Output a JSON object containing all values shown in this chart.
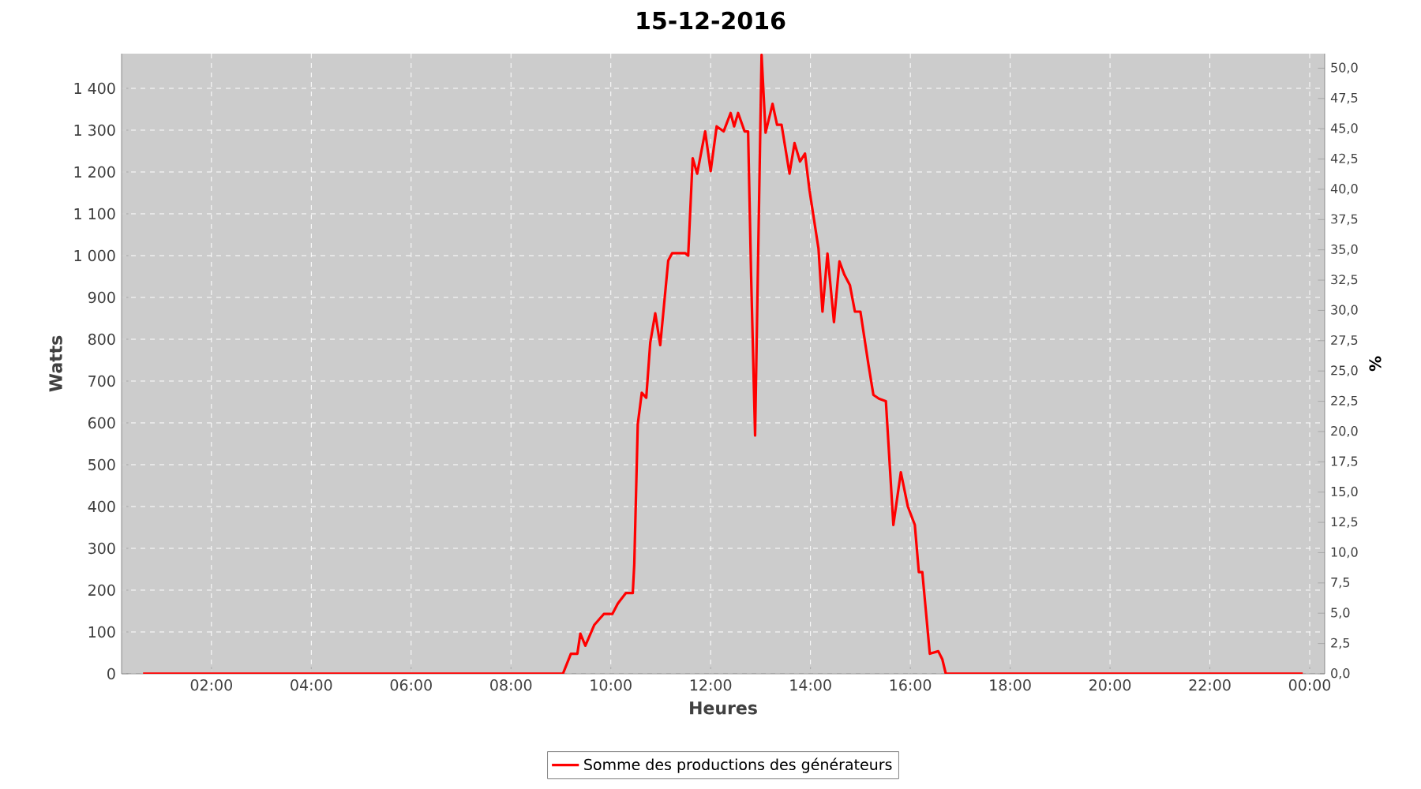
{
  "chart_data": {
    "type": "line",
    "title": "15-12-2016",
    "xlabel": "Heures",
    "ylabel": "Watts",
    "y2label": "%",
    "xlim": [
      0.2,
      24.3
    ],
    "ylim": [
      0,
      1483
    ],
    "y2lim": [
      0,
      51.2
    ],
    "xticks": [
      {
        "value": 2,
        "label": "02:00"
      },
      {
        "value": 4,
        "label": "04:00"
      },
      {
        "value": 6,
        "label": "06:00"
      },
      {
        "value": 8,
        "label": "08:00"
      },
      {
        "value": 10,
        "label": "10:00"
      },
      {
        "value": 12,
        "label": "12:00"
      },
      {
        "value": 14,
        "label": "14:00"
      },
      {
        "value": 16,
        "label": "16:00"
      },
      {
        "value": 18,
        "label": "18:00"
      },
      {
        "value": 20,
        "label": "20:00"
      },
      {
        "value": 22,
        "label": "22:00"
      },
      {
        "value": 24,
        "label": "00:00"
      }
    ],
    "yticks": [
      0,
      100,
      200,
      300,
      400,
      500,
      600,
      700,
      800,
      900,
      {
        "value": 1000,
        "label": "1 000"
      },
      {
        "value": 1100,
        "label": "1 100"
      },
      {
        "value": 1200,
        "label": "1 200"
      },
      {
        "value": 1300,
        "label": "1 300"
      },
      {
        "value": 1400,
        "label": "1 400"
      }
    ],
    "y2ticks": [
      {
        "value": 0,
        "label": "0,0"
      },
      {
        "value": 2.5,
        "label": "2,5"
      },
      {
        "value": 5,
        "label": "5,0"
      },
      {
        "value": 7.5,
        "label": "7,5"
      },
      {
        "value": 10,
        "label": "10,0"
      },
      {
        "value": 12.5,
        "label": "12,5"
      },
      {
        "value": 15,
        "label": "15,0"
      },
      {
        "value": 17.5,
        "label": "17,5"
      },
      {
        "value": 20,
        "label": "20,0"
      },
      {
        "value": 22.5,
        "label": "22,5"
      },
      {
        "value": 25,
        "label": "25,0"
      },
      {
        "value": 27.5,
        "label": "27,5"
      },
      {
        "value": 30,
        "label": "30,0"
      },
      {
        "value": 32.5,
        "label": "32,5"
      },
      {
        "value": 35,
        "label": "35,0"
      },
      {
        "value": 37.5,
        "label": "37,5"
      },
      {
        "value": 40,
        "label": "40,0"
      },
      {
        "value": 42.5,
        "label": "42,5"
      },
      {
        "value": 45,
        "label": "45,0"
      },
      {
        "value": 47.5,
        "label": "47,5"
      },
      {
        "value": 50,
        "label": "50,0"
      }
    ],
    "grid": true,
    "legend": "bottom",
    "line_style": "solid",
    "series": [
      {
        "name": "Somme des productions des  générateurs",
        "color": "#ff0000",
        "x": [
          0.63,
          9.04,
          9.2,
          9.33,
          9.39,
          9.49,
          9.67,
          9.86,
          10.03,
          10.14,
          10.3,
          10.44,
          10.47,
          10.54,
          10.62,
          10.71,
          10.79,
          10.89,
          10.99,
          11.15,
          11.23,
          11.49,
          11.55,
          11.64,
          11.73,
          11.89,
          12.0,
          12.12,
          12.26,
          12.4,
          12.47,
          12.55,
          12.68,
          12.75,
          12.81,
          12.89,
          13.02,
          13.1,
          13.24,
          13.33,
          13.42,
          13.58,
          13.68,
          13.79,
          13.89,
          13.98,
          14.16,
          14.24,
          14.34,
          14.47,
          14.58,
          14.68,
          14.79,
          14.89,
          15.0,
          15.16,
          15.26,
          15.37,
          15.51,
          15.66,
          15.81,
          15.95,
          16.09,
          16.17,
          16.24,
          16.39,
          16.56,
          16.64,
          16.71,
          23.86
        ],
        "values": [
          0,
          0,
          48,
          48,
          96,
          67,
          117,
          143,
          143,
          168,
          193,
          193,
          262,
          597,
          672,
          660,
          792,
          862,
          786,
          988,
          1006,
          1006,
          1000,
          1233,
          1196,
          1297,
          1202,
          1309,
          1297,
          1341,
          1309,
          1341,
          1297,
          1297,
          954,
          570,
          1480,
          1294,
          1363,
          1313,
          1313,
          1196,
          1269,
          1225,
          1244,
          1156,
          1017,
          866,
          1005,
          841,
          986,
          954,
          929,
          866,
          866,
          740,
          667,
          658,
          652,
          356,
          482,
          400,
          356,
          243,
          243,
          48,
          54,
          35,
          0,
          0
        ]
      }
    ]
  }
}
